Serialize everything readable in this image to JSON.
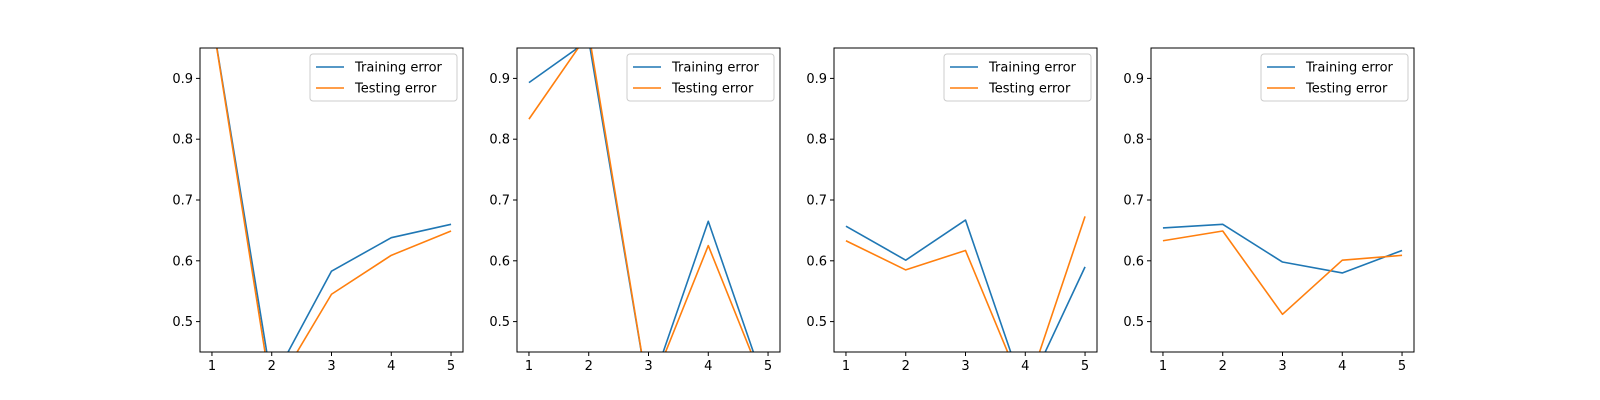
{
  "figure": {
    "background": "#ffffff"
  },
  "chart_data": [
    {
      "type": "line",
      "x": [
        1,
        2,
        3,
        4,
        5
      ],
      "xticks": [
        1,
        2,
        3,
        4,
        5
      ],
      "ylim": [
        0.45,
        0.95
      ],
      "yticks": [
        "0.5",
        "0.6",
        "0.7",
        "0.8",
        "0.9"
      ],
      "grid": false,
      "legend": "top-right",
      "series": [
        {
          "name": "Training error",
          "color": "#1f77b4",
          "values": [
            1.0,
            0.4,
            0.583,
            0.638,
            0.66
          ]
        },
        {
          "name": "Testing error",
          "color": "#ff7f0e",
          "values": [
            1.0,
            0.38,
            0.545,
            0.609,
            0.649
          ]
        }
      ]
    },
    {
      "type": "line",
      "x": [
        1,
        2,
        3,
        4,
        5
      ],
      "xticks": [
        1,
        2,
        3,
        4,
        5
      ],
      "ylim": [
        0.45,
        0.95
      ],
      "yticks": [
        "0.5",
        "0.6",
        "0.7",
        "0.8",
        "0.9"
      ],
      "grid": false,
      "legend": "top-right",
      "series": [
        {
          "name": "Training error",
          "color": "#1f77b4",
          "values": [
            0.893,
            0.963,
            0.38,
            0.665,
            0.38
          ]
        },
        {
          "name": "Testing error",
          "color": "#ff7f0e",
          "values": [
            0.833,
            0.975,
            0.38,
            0.625,
            0.38
          ]
        }
      ]
    },
    {
      "type": "line",
      "x": [
        1,
        2,
        3,
        4,
        5
      ],
      "xticks": [
        1,
        2,
        3,
        4,
        5
      ],
      "ylim": [
        0.45,
        0.95
      ],
      "yticks": [
        "0.5",
        "0.6",
        "0.7",
        "0.8",
        "0.9"
      ],
      "grid": false,
      "legend": "top-right",
      "series": [
        {
          "name": "Training error",
          "color": "#1f77b4",
          "values": [
            0.657,
            0.601,
            0.667,
            0.38,
            0.59
          ]
        },
        {
          "name": "Testing error",
          "color": "#ff7f0e",
          "values": [
            0.633,
            0.585,
            0.617,
            0.38,
            0.673
          ]
        }
      ]
    },
    {
      "type": "line",
      "x": [
        1,
        2,
        3,
        4,
        5
      ],
      "xticks": [
        1,
        2,
        3,
        4,
        5
      ],
      "ylim": [
        0.45,
        0.95
      ],
      "yticks": [
        "0.5",
        "0.6",
        "0.7",
        "0.8",
        "0.9"
      ],
      "grid": false,
      "legend": "top-right",
      "series": [
        {
          "name": "Training error",
          "color": "#1f77b4",
          "values": [
            0.654,
            0.66,
            0.598,
            0.58,
            0.617
          ]
        },
        {
          "name": "Testing error",
          "color": "#ff7f0e",
          "values": [
            0.633,
            0.649,
            0.512,
            0.601,
            0.609
          ]
        }
      ]
    }
  ]
}
